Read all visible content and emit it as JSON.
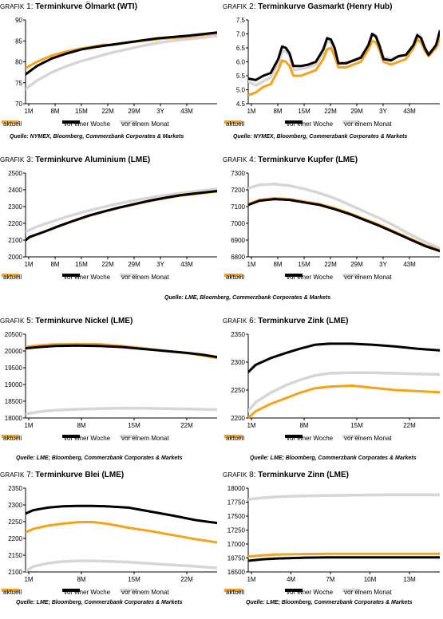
{
  "legend_labels": [
    "aktuell",
    "vor einer Woche",
    "vor einem Monat"
  ],
  "colors": {
    "aktuell": "#f7a21b",
    "vor einer Woche": "#000000",
    "vor einem Monat": "#d6d6d6"
  },
  "sources": {
    "s1": "Quelle: NYMEX, Bloomberg, Commerzbank Corporates & Markets",
    "s2": "Quelle: NYMEX, Bloomberg, Commerzbank Corporates & Markets",
    "s3": "Quelle: LME, Bloomberg, Commerzbank Corporates & Markets",
    "s4": "Quelle: LME; Bloomberg, Commerzbank Corporates & Markets",
    "s5": "Quelle: LME; Bloomberg, Commerzbank Corporates & Markets"
  },
  "chart_data": [
    {
      "type": "line",
      "title_prefix": "Grafik",
      "title_num": "1:",
      "title": "Terminkurve Ölmarkt (WTI)",
      "categories": [
        "1M",
        "8M",
        "15M",
        "22M",
        "29M",
        "3Y",
        "43M"
      ],
      "yticks": [
        "70",
        "75",
        "80",
        "85",
        "90"
      ],
      "ylim": [
        70,
        90
      ],
      "xlim": [
        1,
        52
      ],
      "series": [
        {
          "name": "aktuell",
          "x": [
            1,
            4,
            8,
            12,
            16,
            20,
            22,
            24,
            28,
            32,
            36,
            40,
            44,
            48,
            52
          ],
          "y": [
            78.5,
            80,
            81.5,
            82.5,
            83.2,
            83.8,
            84.1,
            84.0,
            84.6,
            85.0,
            85.4,
            85.7,
            86.0,
            86.4,
            86.8
          ]
        },
        {
          "name": "vor einer Woche",
          "x": [
            1,
            4,
            8,
            12,
            16,
            20,
            24,
            28,
            32,
            36,
            40,
            44,
            48,
            52
          ],
          "y": [
            77.0,
            79.0,
            80.8,
            82.0,
            83.0,
            83.6,
            84.1,
            84.6,
            85.1,
            85.6,
            85.9,
            86.2,
            86.6,
            87.0
          ]
        },
        {
          "name": "vor einem Monat",
          "x": [
            1,
            4,
            8,
            12,
            16,
            20,
            24,
            28,
            32,
            36,
            40,
            44,
            48,
            52
          ],
          "y": [
            73.5,
            75.5,
            77.5,
            79.0,
            80.2,
            81.2,
            82.2,
            83.0,
            83.8,
            84.5,
            85.0,
            85.4,
            85.8,
            86.2
          ]
        }
      ]
    },
    {
      "type": "line",
      "title_prefix": "Grafik",
      "title_num": "2:",
      "title": "Terminkurve Gasmarkt (Henry Hub)",
      "categories": [
        "1M",
        "8M",
        "15M",
        "22M",
        "29M",
        "3Y",
        "43M"
      ],
      "yticks": [
        "4.5",
        "5.0",
        "5.5",
        "6.0",
        "6.5",
        "7.0",
        "7.5"
      ],
      "ylim": [
        4.5,
        7.5
      ],
      "xlim": [
        1,
        52
      ],
      "series": [
        {
          "name": "aktuell",
          "x": [
            1,
            3,
            5,
            7,
            9,
            10,
            11,
            12,
            13,
            15,
            17,
            19,
            21,
            22,
            23,
            24,
            25,
            27,
            29,
            31,
            33,
            34,
            35,
            36,
            37,
            39,
            41,
            43,
            45,
            46,
            47,
            48,
            49,
            51,
            52
          ],
          "y": [
            4.8,
            4.9,
            5.1,
            5.2,
            5.7,
            6.05,
            6.0,
            5.85,
            5.5,
            5.5,
            5.6,
            5.7,
            6.1,
            6.45,
            6.5,
            6.2,
            5.8,
            5.8,
            5.9,
            6.0,
            6.45,
            6.75,
            6.7,
            6.4,
            6.0,
            5.9,
            6.0,
            6.1,
            6.5,
            6.8,
            6.7,
            6.4,
            6.2,
            6.5,
            6.9
          ]
        },
        {
          "name": "vor einer Woche",
          "x": [
            1,
            3,
            5,
            7,
            9,
            10,
            11,
            12,
            13,
            15,
            17,
            19,
            21,
            22,
            23,
            24,
            25,
            27,
            29,
            31,
            33,
            34,
            35,
            36,
            37,
            39,
            41,
            43,
            45,
            46,
            47,
            48,
            49,
            51,
            52
          ],
          "y": [
            5.4,
            5.35,
            5.5,
            5.6,
            6.1,
            6.55,
            6.5,
            6.3,
            5.85,
            5.85,
            5.9,
            6.0,
            6.45,
            6.85,
            6.8,
            6.5,
            5.95,
            5.95,
            6.05,
            6.15,
            6.6,
            7.0,
            6.9,
            6.55,
            6.1,
            6.05,
            6.2,
            6.25,
            6.6,
            6.95,
            6.85,
            6.5,
            6.25,
            6.6,
            7.1
          ]
        },
        {
          "name": "vor einem Monat",
          "x": [
            1,
            3,
            5,
            7,
            9,
            10,
            11,
            12,
            13,
            15,
            17,
            19,
            21,
            22,
            23,
            24,
            25,
            27,
            29,
            31,
            33,
            34,
            35,
            36,
            37,
            39,
            41,
            43,
            45,
            46,
            47,
            48,
            49,
            51,
            52
          ],
          "y": [
            5.3,
            5.15,
            5.3,
            5.45,
            5.95,
            6.35,
            6.4,
            6.2,
            5.7,
            5.75,
            5.8,
            5.9,
            6.35,
            6.75,
            6.7,
            6.4,
            5.9,
            5.95,
            6.05,
            6.15,
            6.6,
            7.0,
            6.95,
            6.6,
            6.15,
            6.1,
            6.2,
            6.25,
            6.6,
            7.0,
            6.9,
            6.5,
            6.3,
            6.5,
            6.7
          ]
        }
      ]
    },
    {
      "type": "line",
      "title_prefix": "Grafik",
      "title_num": "3:",
      "title": "Terminkurve Aluminium (LME)",
      "categories": [
        "1M",
        "8M",
        "15M",
        "22M",
        "29M",
        "3Y",
        "43M"
      ],
      "yticks": [
        "2000",
        "2100",
        "2200",
        "2300",
        "2400",
        "2500"
      ],
      "ylim": [
        2000,
        2500
      ],
      "xlim": [
        1,
        52
      ],
      "series": [
        {
          "name": "aktuell",
          "x": [
            1,
            3,
            6,
            10,
            14,
            18,
            22,
            26,
            30,
            34,
            38,
            42,
            46,
            52
          ],
          "y": [
            2105,
            2125,
            2150,
            2185,
            2215,
            2245,
            2270,
            2293,
            2313,
            2333,
            2350,
            2365,
            2375,
            2390
          ]
        },
        {
          "name": "vor einer Woche",
          "x": [
            1,
            2,
            6,
            10,
            14,
            18,
            22,
            26,
            30,
            34,
            38,
            42,
            46,
            52
          ],
          "y": [
            2098,
            2118,
            2150,
            2185,
            2217,
            2247,
            2272,
            2295,
            2315,
            2335,
            2352,
            2367,
            2378,
            2393
          ]
        },
        {
          "name": "vor einem Monat",
          "x": [
            1,
            4,
            8,
            12,
            16,
            20,
            24,
            28,
            32,
            36,
            40,
            44,
            48,
            52
          ],
          "y": [
            2150,
            2180,
            2210,
            2240,
            2265,
            2288,
            2310,
            2328,
            2345,
            2360,
            2373,
            2385,
            2395,
            2405
          ]
        }
      ]
    },
    {
      "type": "line",
      "title_prefix": "Grafik",
      "title_num": "4:",
      "title": "Terminkurve Kupfer (LME)",
      "categories": [
        "1M",
        "8M",
        "15M",
        "22M",
        "29M",
        "3Y",
        "43M"
      ],
      "yticks": [
        "6800",
        "6900",
        "7000",
        "7100",
        "7200",
        "7300"
      ],
      "ylim": [
        6800,
        7300
      ],
      "xlim": [
        1,
        52
      ],
      "series": [
        {
          "name": "aktuell",
          "x": [
            1,
            4,
            8,
            12,
            16,
            20,
            24,
            28,
            32,
            36,
            40,
            44,
            48,
            52
          ],
          "y": [
            7115,
            7140,
            7150,
            7145,
            7130,
            7115,
            7090,
            7060,
            7025,
            6990,
            6950,
            6910,
            6870,
            6840
          ]
        },
        {
          "name": "vor einer Woche",
          "x": [
            1,
            4,
            8,
            12,
            16,
            20,
            24,
            28,
            32,
            36,
            40,
            44,
            48,
            52
          ],
          "y": [
            7110,
            7135,
            7145,
            7140,
            7125,
            7110,
            7085,
            7055,
            7020,
            6985,
            6945,
            6905,
            6865,
            6835
          ]
        },
        {
          "name": "vor einem Monat",
          "x": [
            1,
            4,
            8,
            12,
            16,
            20,
            24,
            28,
            32,
            36,
            40,
            44,
            48,
            52
          ],
          "y": [
            7210,
            7230,
            7235,
            7225,
            7205,
            7180,
            7150,
            7110,
            7070,
            7030,
            6985,
            6935,
            6890,
            6850
          ]
        }
      ]
    },
    {
      "type": "line",
      "title_prefix": "Grafik",
      "title_num": "5:",
      "title": "Terminkurve Nickel (LME)",
      "categories": [
        "1M",
        "8M",
        "15M",
        "22M"
      ],
      "yticks": [
        "18000",
        "18500",
        "19000",
        "19500",
        "20000",
        "20500"
      ],
      "ylim": [
        18000,
        20500
      ],
      "xlim": [
        1,
        27
      ],
      "series": [
        {
          "name": "aktuell",
          "x": [
            1,
            3,
            5,
            8,
            11,
            14,
            17,
            20,
            23,
            25,
            27
          ],
          "y": [
            20120,
            20170,
            20200,
            20210,
            20200,
            20150,
            20080,
            20000,
            19930,
            19870,
            19790
          ]
        },
        {
          "name": "vor einer Woche",
          "x": [
            1,
            3,
            5,
            8,
            11,
            14,
            17,
            20,
            23,
            25,
            27
          ],
          "y": [
            20080,
            20120,
            20150,
            20160,
            20150,
            20120,
            20060,
            20000,
            19940,
            19890,
            19820
          ]
        },
        {
          "name": "vor einem Monat",
          "x": [
            1,
            3,
            5,
            8,
            11,
            14,
            17,
            20,
            23,
            25,
            27
          ],
          "y": [
            18120,
            18190,
            18230,
            18260,
            18280,
            18290,
            18290,
            18280,
            18270,
            18260,
            18250
          ]
        }
      ]
    },
    {
      "type": "line",
      "title_prefix": "Grafik",
      "title_num": "6:",
      "title": "Terminkurve Zink (LME)",
      "categories": [
        "1M",
        "8M",
        "15M",
        "22M"
      ],
      "yticks": [
        "2200",
        "2250",
        "2300",
        "2350"
      ],
      "ylim": [
        2200,
        2350
      ],
      "xlim": [
        1,
        27
      ],
      "series": [
        {
          "name": "aktuell",
          "x": [
            1,
            2,
            4,
            6,
            8,
            10,
            12,
            15,
            18,
            21,
            24,
            27
          ],
          "y": [
            2200,
            2212,
            2225,
            2235,
            2245,
            2253,
            2256,
            2258,
            2254,
            2250,
            2248,
            2246
          ]
        },
        {
          "name": "vor einer Woche",
          "x": [
            1,
            2,
            4,
            6,
            8,
            10,
            12,
            15,
            18,
            21,
            24,
            27
          ],
          "y": [
            2282,
            2295,
            2307,
            2316,
            2324,
            2331,
            2333,
            2333,
            2331,
            2328,
            2324,
            2321
          ]
        },
        {
          "name": "vor einem Monat",
          "x": [
            1,
            2,
            4,
            6,
            8,
            10,
            12,
            15,
            18,
            21,
            24,
            27
          ],
          "y": [
            2213,
            2228,
            2245,
            2258,
            2268,
            2276,
            2280,
            2281,
            2281,
            2280,
            2279,
            2278
          ]
        }
      ]
    },
    {
      "type": "line",
      "title_prefix": "Grafik",
      "title_num": "7:",
      "title": "Terminkurve Blei (LME)",
      "categories": [
        "1M",
        "8M",
        "15M",
        "22M"
      ],
      "yticks": [
        "2100",
        "2150",
        "2200",
        "2250",
        "2300",
        "2350"
      ],
      "ylim": [
        2100,
        2350
      ],
      "xlim": [
        1,
        27
      ],
      "series": [
        {
          "name": "aktuell",
          "x": [
            1,
            2,
            4,
            6,
            8,
            10,
            12,
            15,
            18,
            21,
            24,
            27
          ],
          "y": [
            2218,
            2228,
            2238,
            2244,
            2248,
            2249,
            2244,
            2232,
            2222,
            2210,
            2198,
            2188
          ]
        },
        {
          "name": "vor einer Woche",
          "x": [
            1,
            2,
            4,
            6,
            8,
            10,
            12,
            15,
            18,
            21,
            24,
            27
          ],
          "y": [
            2274,
            2284,
            2292,
            2296,
            2297,
            2297,
            2296,
            2292,
            2280,
            2268,
            2255,
            2246
          ]
        },
        {
          "name": "vor einem Monat",
          "x": [
            1,
            2,
            4,
            6,
            8,
            10,
            12,
            15,
            18,
            21,
            24,
            27
          ],
          "y": [
            2102,
            2116,
            2126,
            2131,
            2133,
            2133,
            2132,
            2129,
            2125,
            2121,
            2117,
            2112
          ]
        }
      ]
    },
    {
      "type": "line",
      "title_prefix": "Grafik",
      "title_num": "8:",
      "title": "Terminkurve Zinn (LME)",
      "categories": [
        "1M",
        "4M",
        "7M",
        "10M",
        "13M"
      ],
      "yticks": [
        "16500",
        "16750",
        "17000",
        "17250",
        "17500",
        "17750",
        "18000"
      ],
      "ylim": [
        16500,
        18000
      ],
      "xlim": [
        1,
        15.2
      ],
      "series": [
        {
          "name": "aktuell",
          "x": [
            1,
            2,
            3,
            5,
            7,
            9,
            11,
            13,
            15.2
          ],
          "y": [
            16775,
            16795,
            16810,
            16820,
            16825,
            16825,
            16825,
            16825,
            16825
          ]
        },
        {
          "name": "vor einer Woche",
          "x": [
            1,
            2,
            3,
            5,
            7,
            9,
            11,
            13,
            15.2
          ],
          "y": [
            16700,
            16725,
            16740,
            16755,
            16760,
            16762,
            16762,
            16762,
            16762
          ]
        },
        {
          "name": "vor einem Monat",
          "x": [
            1,
            2,
            3,
            5,
            7,
            9,
            11,
            13,
            15.2
          ],
          "y": [
            17800,
            17825,
            17845,
            17860,
            17870,
            17875,
            17880,
            17880,
            17880
          ]
        }
      ]
    }
  ]
}
